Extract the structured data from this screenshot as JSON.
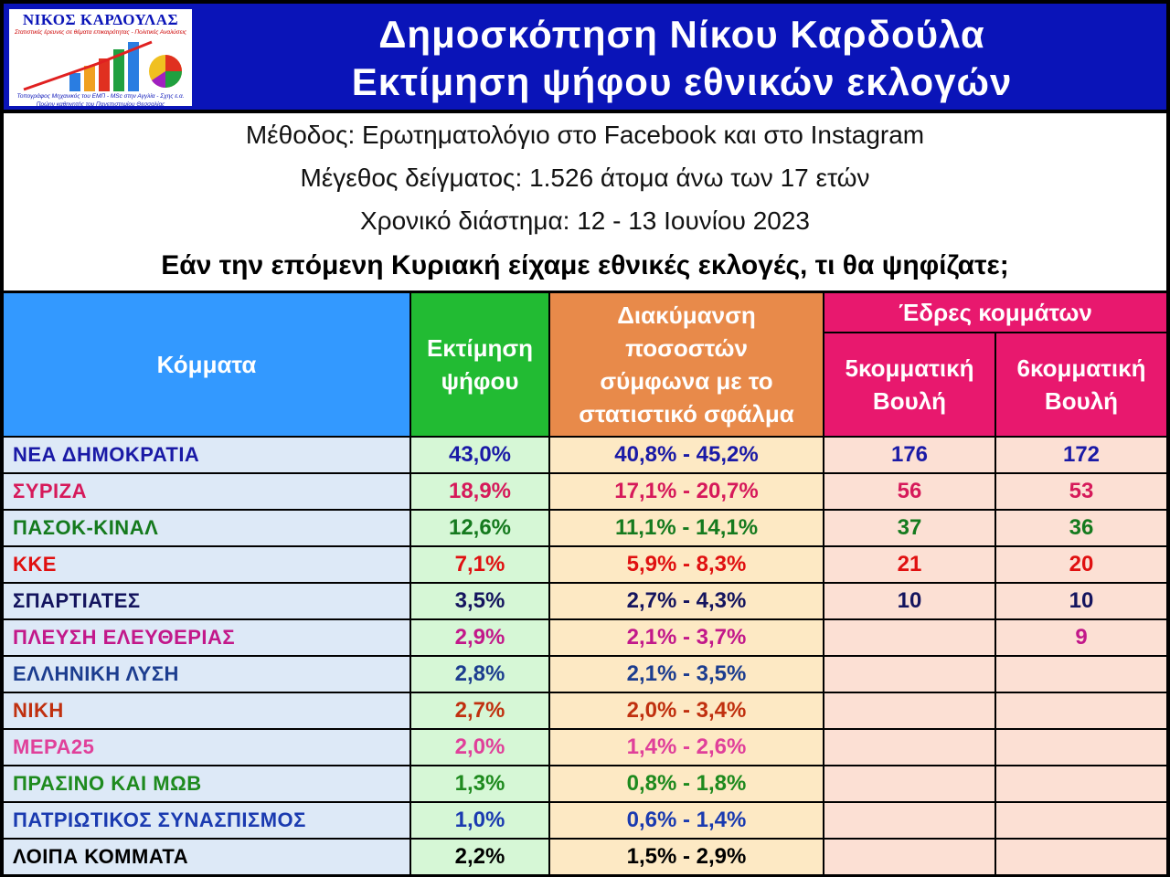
{
  "header": {
    "logo": {
      "name": "ΝΙΚΟΣ ΚΑΡΔΟΥΛΑΣ",
      "tagline": "Στατιστικές έρευνες σε θέματα επικαιρότητας - Πολιτικές Αναλύσεις",
      "footer_line1": "Τοπογράφος Μηχανικός του ΕΜΠ - MSc στην Αγγλία - Σχης ε.α.",
      "footer_line2": "Πρώην καθηγητής του Πανεπιστημίου Θεσσαλίας"
    },
    "title_line1": "Δημοσκόπηση Νίκου Καρδούλα",
    "title_line2": "Εκτίμηση ψήφου εθνικών εκλογών"
  },
  "info": {
    "method": "Μέθοδος: Ερωτηματολόγιο στο Facebook και στο Instagram",
    "sample": "Μέγεθος δείγματος: 1.526 άτομα άνω των 17 ετών",
    "period": "Χρονικό διάστημα: 12 - 13 Ιουνίου 2023",
    "question": "Εάν την επόμενη Κυριακή είχαμε εθνικές εκλογές, τι θα ψηφίζατε;"
  },
  "table": {
    "headers": {
      "party": "Κόμματα",
      "estimate_l1": "Εκτίμηση",
      "estimate_l2": "ψήφου",
      "range_l1": "Διακύμανση",
      "range_l2": "ποσοστών",
      "range_l3": "σύμφωνα με το",
      "range_l4": "στατιστικό σφάλμα",
      "seats": "Έδρες κομμάτων",
      "seats5_l1": "5κομματική",
      "seats5_l2": "Βουλή",
      "seats6_l1": "6κομματική",
      "seats6_l2": "Βουλή"
    },
    "colors": {
      "party_header": "#3399ff",
      "estimate_header": "#22bb33",
      "range_header": "#e88a4a",
      "seats_header": "#e8186e",
      "party_col": "#dde9f7",
      "estimate_col": "#d6f7d6",
      "range_col": "#fde9c4",
      "seats_col": "#fce0d4"
    },
    "rows": [
      {
        "party": "ΝΕΑ ΔΗΜΟΚΡΑΤΙΑ",
        "estimate": "43,0%",
        "range": "40,8% - 45,2%",
        "seats5": "176",
        "seats6": "172",
        "color": "#1a1aa6"
      },
      {
        "party": "ΣΥΡΙΖΑ",
        "estimate": "18,9%",
        "range": "17,1% - 20,7%",
        "seats5": "56",
        "seats6": "53",
        "color": "#d6195a"
      },
      {
        "party": "ΠΑΣΟΚ-ΚΙΝΑΛ",
        "estimate": "12,6%",
        "range": "11,1% - 14,1%",
        "seats5": "37",
        "seats6": "36",
        "color": "#157a1e"
      },
      {
        "party": "ΚΚΕ",
        "estimate": "7,1%",
        "range": "5,9% - 8,3%",
        "seats5": "21",
        "seats6": "20",
        "color": "#e01010"
      },
      {
        "party": "ΣΠΑΡΤΙΑΤΕΣ",
        "estimate": "3,5%",
        "range": "2,7% - 4,3%",
        "seats5": "10",
        "seats6": "10",
        "color": "#14145e"
      },
      {
        "party": "ΠΛΕΥΣΗ ΕΛΕΥΘΕΡΙΑΣ",
        "estimate": "2,9%",
        "range": "2,1% - 3,7%",
        "seats5": "",
        "seats6": "9",
        "color": "#c2188a"
      },
      {
        "party": "ΕΛΛΗΝΙΚΗ ΛΥΣΗ",
        "estimate": "2,8%",
        "range": "2,1% - 3,5%",
        "seats5": "",
        "seats6": "",
        "color": "#1c3d8f"
      },
      {
        "party": "ΝΙΚΗ",
        "estimate": "2,7%",
        "range": "2,0% - 3,4%",
        "seats5": "",
        "seats6": "",
        "color": "#c0300f"
      },
      {
        "party": "ΜΕΡΑ25",
        "estimate": "2,0%",
        "range": "1,4% - 2,6%",
        "seats5": "",
        "seats6": "",
        "color": "#e0409a"
      },
      {
        "party": "ΠΡΑΣΙΝΟ ΚΑΙ ΜΩΒ",
        "estimate": "1,3%",
        "range": "0,8% - 1,8%",
        "seats5": "",
        "seats6": "",
        "color": "#1e8a1e"
      },
      {
        "party": "ΠΑΤΡΙΩΤΙΚΟΣ ΣΥΝΑΣΠΙΣΜΟΣ",
        "estimate": "1,0%",
        "range": "0,6% - 1,4%",
        "seats5": "",
        "seats6": "",
        "color": "#1a3ab0"
      },
      {
        "party": "ΛΟΙΠΑ ΚΟΜΜΑΤΑ",
        "estimate": "2,2%",
        "range": "1,5% - 2,9%",
        "seats5": "",
        "seats6": "",
        "color": "#000000"
      }
    ]
  }
}
